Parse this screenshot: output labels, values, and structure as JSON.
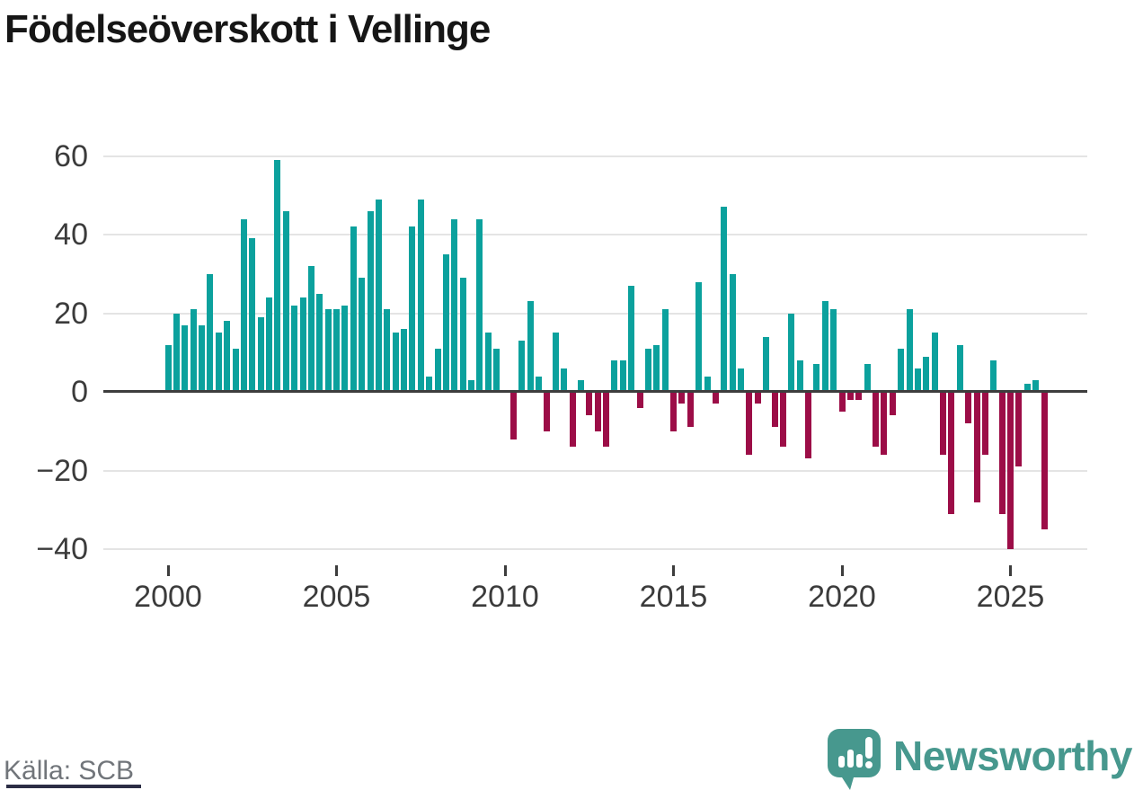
{
  "header": {
    "title": "Födelseöverskott i Vellinge"
  },
  "source": {
    "label": "Källa: SCB"
  },
  "brand": {
    "name": "Newsworthy",
    "color": "#47988e",
    "icon": "newsworthy-speech-bubble-bar-chart-icon"
  },
  "chart_data": {
    "type": "bar",
    "title": "Födelseöverskott i Vellinge",
    "frequency": "quarterly",
    "start_period": "2000 Q1",
    "end_period": "2026 Q1",
    "xlabel": "",
    "ylabel": "",
    "ylim": [
      -45,
      65
    ],
    "grid": true,
    "y_ticks": [
      60,
      40,
      20,
      0,
      -20,
      -40
    ],
    "x_tick_years": [
      2000,
      2005,
      2010,
      2015,
      2020,
      2025
    ],
    "positive_color": "#0ba19d",
    "negative_color": "#9c0d47",
    "zero_line_color": "#3d3d3d",
    "gridline_color": "#e4e4e4",
    "values": [
      12,
      20,
      17,
      21,
      17,
      30,
      15,
      18,
      11,
      44,
      39,
      19,
      24,
      59,
      46,
      22,
      24,
      32,
      25,
      21,
      21,
      22,
      42,
      29,
      46,
      49,
      21,
      15,
      16,
      42,
      49,
      4,
      11,
      35,
      44,
      29,
      3,
      44,
      15,
      11,
      0,
      -12,
      13,
      23,
      4,
      -10,
      15,
      6,
      -14,
      3,
      -6,
      -10,
      -14,
      8,
      8,
      27,
      -4,
      11,
      12,
      21,
      -10,
      -3,
      -9,
      28,
      4,
      -3,
      47,
      30,
      6,
      -16,
      -3,
      14,
      -9,
      -14,
      20,
      8,
      -17,
      7,
      23,
      21,
      -5,
      -2,
      -2,
      7,
      -14,
      -16,
      -6,
      11,
      21,
      6,
      9,
      15,
      -16,
      -31,
      12,
      -8,
      -28,
      -16,
      8,
      -31,
      -40,
      -19,
      2,
      3,
      -35
    ]
  }
}
